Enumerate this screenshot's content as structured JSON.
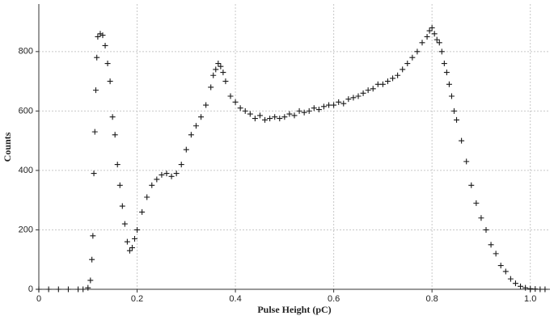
{
  "chart_data": {
    "type": "scatter",
    "x_label": "Pulse Height (pC)",
    "y_label": "Counts",
    "marker": "+",
    "color": "#1a1a1a",
    "grid": true,
    "xlim": [
      0,
      1.04
    ],
    "ylim": [
      0,
      960
    ],
    "xticks": [
      0,
      0.2,
      0.4,
      0.6,
      0.8,
      {
        "value": 1,
        "label": "1.0"
      }
    ],
    "yticks": [
      0,
      200,
      400,
      600,
      800
    ],
    "x": [
      0,
      0.02,
      0.04,
      0.06,
      0.08,
      0.09,
      0.1,
      0.105,
      0.108,
      0.11,
      0.112,
      0.114,
      0.116,
      0.118,
      0.12,
      0.125,
      0.13,
      0.135,
      0.14,
      0.145,
      0.15,
      0.155,
      0.16,
      0.165,
      0.17,
      0.175,
      0.18,
      0.185,
      0.19,
      0.195,
      0.2,
      0.21,
      0.22,
      0.23,
      0.24,
      0.25,
      0.26,
      0.27,
      0.28,
      0.29,
      0.3,
      0.31,
      0.32,
      0.33,
      0.34,
      0.35,
      0.355,
      0.36,
      0.365,
      0.37,
      0.375,
      0.38,
      0.39,
      0.4,
      0.41,
      0.42,
      0.43,
      0.44,
      0.45,
      0.46,
      0.47,
      0.48,
      0.49,
      0.5,
      0.51,
      0.52,
      0.53,
      0.54,
      0.55,
      0.56,
      0.57,
      0.58,
      0.59,
      0.6,
      0.61,
      0.62,
      0.63,
      0.64,
      0.65,
      0.66,
      0.67,
      0.68,
      0.69,
      0.7,
      0.71,
      0.72,
      0.73,
      0.74,
      0.75,
      0.76,
      0.77,
      0.78,
      0.79,
      0.795,
      0.8,
      0.805,
      0.81,
      0.815,
      0.82,
      0.825,
      0.83,
      0.835,
      0.84,
      0.845,
      0.85,
      0.86,
      0.87,
      0.88,
      0.89,
      0.9,
      0.91,
      0.92,
      0.93,
      0.94,
      0.95,
      0.96,
      0.97,
      0.98,
      0.99,
      1.0,
      1.01,
      1.02,
      1.03
    ],
    "values": [
      0,
      0,
      0,
      0,
      0,
      0,
      5,
      30,
      100,
      180,
      390,
      530,
      670,
      780,
      850,
      860,
      855,
      820,
      760,
      700,
      580,
      520,
      420,
      350,
      280,
      220,
      160,
      130,
      140,
      170,
      200,
      260,
      310,
      350,
      370,
      385,
      390,
      380,
      390,
      420,
      470,
      520,
      550,
      580,
      620,
      680,
      720,
      740,
      760,
      750,
      730,
      700,
      650,
      630,
      610,
      600,
      590,
      575,
      585,
      570,
      575,
      580,
      575,
      580,
      590,
      585,
      600,
      595,
      600,
      610,
      605,
      615,
      620,
      620,
      630,
      625,
      640,
      645,
      650,
      660,
      670,
      675,
      690,
      690,
      700,
      710,
      720,
      740,
      760,
      780,
      800,
      830,
      850,
      870,
      880,
      860,
      840,
      830,
      800,
      760,
      730,
      690,
      650,
      600,
      570,
      500,
      430,
      350,
      290,
      240,
      200,
      150,
      120,
      80,
      60,
      35,
      20,
      10,
      5,
      2,
      1,
      0,
      0
    ]
  }
}
